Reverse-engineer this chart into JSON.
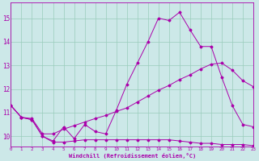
{
  "xlabel": "Windchill (Refroidissement éolien,°C)",
  "bg_color": "#cce8e8",
  "line_color": "#aa00aa",
  "grid_color": "#99ccbb",
  "x_ticks": [
    0,
    1,
    2,
    3,
    4,
    5,
    6,
    7,
    8,
    9,
    10,
    11,
    12,
    13,
    14,
    15,
    16,
    17,
    18,
    19,
    20,
    21,
    22,
    23
  ],
  "y_ticks": [
    10,
    11,
    12,
    13,
    14,
    15
  ],
  "ylim": [
    9.55,
    15.65
  ],
  "xlim": [
    0,
    23
  ],
  "series1_x": [
    0,
    1,
    2,
    3,
    4,
    5,
    6,
    7,
    8,
    9,
    10,
    11,
    12,
    13,
    14,
    15,
    16,
    17,
    18,
    19,
    20,
    21,
    22,
    23
  ],
  "series1_y": [
    11.3,
    10.8,
    10.7,
    10.0,
    9.8,
    10.4,
    9.9,
    10.5,
    10.2,
    10.1,
    11.1,
    12.2,
    13.1,
    14.0,
    15.0,
    14.9,
    15.25,
    14.5,
    13.8,
    13.8,
    12.5,
    11.3,
    10.5,
    10.4
  ],
  "series2_x": [
    0,
    1,
    2,
    3,
    4,
    5,
    6,
    7,
    8,
    9,
    10,
    11,
    12,
    13,
    14,
    15,
    16,
    17,
    18,
    19,
    20,
    21,
    22,
    23
  ],
  "series2_y": [
    11.3,
    10.8,
    10.7,
    10.0,
    9.75,
    9.75,
    9.8,
    9.85,
    9.85,
    9.85,
    9.85,
    9.85,
    9.85,
    9.85,
    9.85,
    9.85,
    9.8,
    9.75,
    9.7,
    9.7,
    9.65,
    9.65,
    9.65,
    9.6
  ],
  "series3_x": [
    0,
    1,
    2,
    3,
    4,
    5,
    6,
    7,
    8,
    9,
    10,
    11,
    12,
    13,
    14,
    15,
    16,
    17,
    18,
    19,
    20,
    21,
    22,
    23
  ],
  "series3_y": [
    11.3,
    10.8,
    10.75,
    10.1,
    10.1,
    10.3,
    10.45,
    10.6,
    10.75,
    10.88,
    11.05,
    11.2,
    11.45,
    11.7,
    11.95,
    12.15,
    12.4,
    12.6,
    12.85,
    13.05,
    13.1,
    12.8,
    12.35,
    12.1
  ]
}
